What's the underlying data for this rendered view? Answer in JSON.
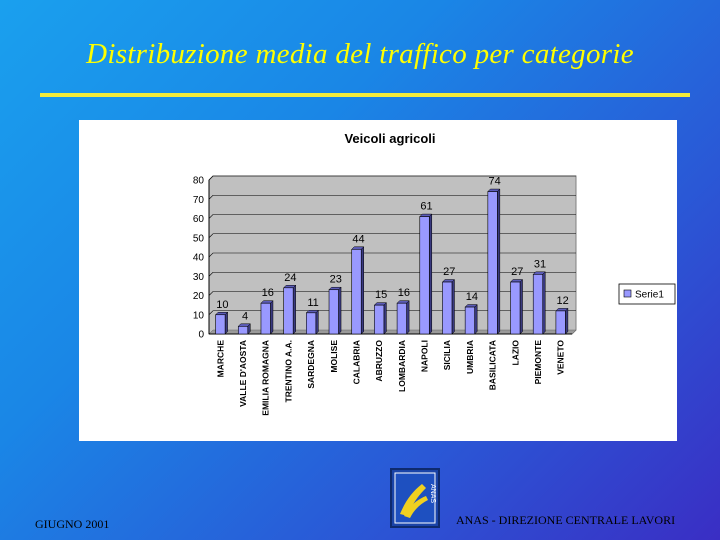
{
  "slide": {
    "title": "Distribuzione media del traffico per categorie",
    "footer_left": "GIUGNO 2001",
    "footer_right": "ANAS - DIREZIONE CENTRALE LAVORI",
    "logo_text": "ANAS"
  },
  "colors": {
    "title": "#ffff00",
    "bar_front": "#9999ff",
    "plot_background": "#c0c0c0"
  },
  "chart_data": {
    "type": "bar",
    "title": "Veicoli agricoli",
    "xlabel": "",
    "ylabel": "",
    "ylim": [
      0,
      80
    ],
    "yticks": [
      0,
      10,
      20,
      30,
      40,
      50,
      60,
      70,
      80
    ],
    "grid": true,
    "legend_position": "right",
    "categories": [
      "MARCHE",
      "VALLE D'AOSTA",
      "EMILIA ROMAGNA",
      "TRENTINO A.A.",
      "SARDEGNA",
      "MOLISE",
      "CALABRIA",
      "ABRUZZO",
      "LOMBARDIA",
      "NAPOLI",
      "SICILIA",
      "UMBRIA",
      "BASILICATA",
      "LAZIO",
      "PIEMONTE",
      "VENETO"
    ],
    "series": [
      {
        "name": "Serie1",
        "values": [
          10,
          4,
          16,
          24,
          11,
          23,
          44,
          15,
          16,
          61,
          27,
          14,
          74,
          27,
          31,
          12
        ]
      }
    ]
  }
}
